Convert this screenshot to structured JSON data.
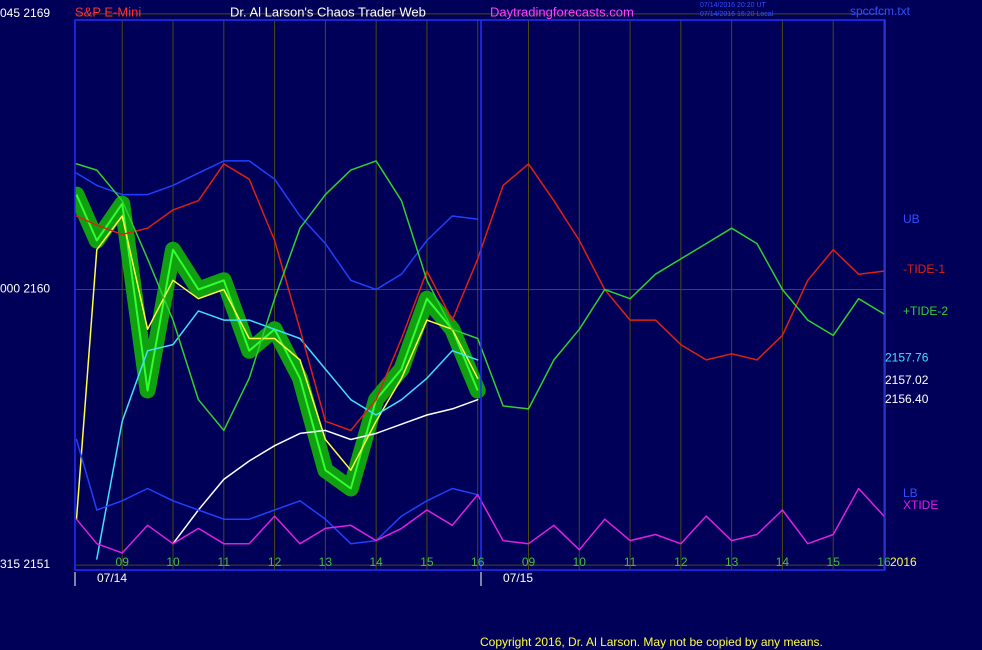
{
  "header": {
    "symbol": "S&P E-Mini",
    "site_title": "Dr. Al Larson's Chaos Trader Web",
    "url": "Daytradingforecasts.com",
    "time_ut": "07/14/2016 20:20 UT",
    "time_local": "07/14/2016 16:20 Local",
    "file": "spccfcm.txt"
  },
  "footer": {
    "copyright": "Copyright 2016, Dr. Al Larson. May not be copied by any means.",
    "year": "2016"
  },
  "chart_data": {
    "type": "line",
    "dates": [
      "07/14",
      "07/15"
    ],
    "x": [
      -0.9,
      -0.5,
      0,
      0.5,
      1,
      1.5,
      2,
      2.5,
      3,
      3.5,
      4,
      4.5,
      5,
      5.5,
      6,
      6.5,
      7,
      7.5,
      8,
      8.5,
      9,
      9.5,
      10,
      10.5,
      11,
      11.5,
      12,
      12.5,
      13,
      13.5,
      14,
      14.5,
      15
    ],
    "xlim": [
      -0.93,
      15.02
    ],
    "xticks": [
      {
        "value": 0,
        "label": "09"
      },
      {
        "value": 1,
        "label": "10"
      },
      {
        "value": 2,
        "label": "11"
      },
      {
        "value": 3,
        "label": "12"
      },
      {
        "value": 4,
        "label": "13"
      },
      {
        "value": 5,
        "label": "14"
      },
      {
        "value": 6,
        "label": "15"
      },
      {
        "value": 7,
        "label": "16"
      },
      {
        "value": 8,
        "label": "09"
      },
      {
        "value": 9,
        "label": "10"
      },
      {
        "value": 10,
        "label": "11"
      },
      {
        "value": 11,
        "label": "12"
      },
      {
        "value": 12,
        "label": "13"
      },
      {
        "value": 13,
        "label": "14"
      },
      {
        "value": 14,
        "label": "15"
      },
      {
        "value": 15,
        "label": "16"
      }
    ],
    "ylim": [
      2150.84,
      2168.8
    ],
    "yticks": [
      {
        "value": 2169,
        "label": "045  2169"
      },
      {
        "value": 2160,
        "label": "000  2160"
      },
      {
        "value": 2151,
        "label": "315  2151"
      }
    ],
    "grid": true,
    "last_values": [
      {
        "value": 2157.76,
        "label": "2157.76",
        "color": "#40e0ff"
      },
      {
        "value": 2157.02,
        "label": "2157.02",
        "color": "#ffffff"
      },
      {
        "value": 2156.4,
        "label": "2156.40",
        "color": "#ffffff"
      }
    ],
    "series": [
      {
        "color": "#10a010",
        "values": [
          2163.1,
          2161.6,
          2162.8,
          2156.7,
          2161.3,
          2160.0,
          2160.3,
          2158.0,
          2158.7,
          2157.1,
          2154.1,
          2153.5,
          2156.4,
          2157.4,
          2159.7,
          2158.7,
          2156.7,
          null,
          null,
          null,
          null,
          null,
          null,
          null,
          null,
          null,
          null,
          null,
          null,
          null,
          null,
          null,
          null
        ]
      },
      {
        "color": "#ffff40",
        "values": [
          2152.5,
          2161.3,
          2162.4,
          2158.7,
          2160.3,
          2159.7,
          2160.0,
          2158.4,
          2158.4,
          2157.7,
          2155.1,
          2154.1,
          2155.7,
          2157.1,
          2159.0,
          2158.7,
          2157.1,
          null,
          null,
          null,
          null,
          null,
          null,
          null,
          null,
          null,
          null,
          null,
          null,
          null,
          null,
          null,
          null
        ]
      },
      {
        "color": "#40e0ff",
        "values": [
          null,
          2151.2,
          2155.7,
          2158.0,
          2158.2,
          2159.3,
          2159.0,
          2159.0,
          2158.7,
          2158.4,
          2157.4,
          2156.4,
          2155.9,
          2156.4,
          2157.1,
          2158.0,
          2157.7,
          null,
          null,
          null,
          null,
          null,
          null,
          null,
          null,
          null,
          null,
          null,
          null,
          null,
          null,
          null,
          null
        ]
      },
      {
        "color": "#ffffff",
        "values": [
          null,
          null,
          null,
          null,
          2151.7,
          2152.8,
          2153.8,
          2154.4,
          2154.9,
          2155.3,
          2155.4,
          2155.1,
          2155.3,
          2155.6,
          2155.9,
          2156.1,
          2156.4,
          null,
          null,
          null,
          null,
          null,
          null,
          null,
          null,
          null,
          null,
          null,
          null,
          null,
          null,
          null,
          null
        ]
      },
      {
        "name": "UB",
        "color": "#2040ff",
        "values": [
          2163.8,
          2163.4,
          2163.1,
          2163.1,
          2163.4,
          2163.8,
          2164.2,
          2164.2,
          2163.6,
          2162.4,
          2161.5,
          2160.3,
          2160.0,
          2160.5,
          2161.6,
          2162.4,
          2162.3,
          null,
          null,
          null,
          null,
          null,
          null,
          null,
          null,
          null,
          null,
          null,
          null,
          null,
          null,
          null,
          null
        ]
      },
      {
        "name": "-TIDE-1",
        "color": "#e02010",
        "values": [
          2162.4,
          2162.1,
          2161.8,
          2162.0,
          2162.6,
          2162.9,
          2164.1,
          2163.6,
          2161.6,
          2158.7,
          2155.7,
          2155.4,
          2156.4,
          2158.4,
          2160.6,
          2159.0,
          2161.0,
          2163.4,
          2164.1,
          2162.9,
          2161.6,
          2160.0,
          2159.0,
          2159.0,
          2158.2,
          2157.7,
          2157.9,
          2157.7,
          2158.5,
          2160.3,
          2161.3,
          2160.5,
          2160.6
        ]
      },
      {
        "name": "+TIDE-2",
        "color": "#30d030",
        "values": [
          2164.1,
          2163.9,
          2162.9,
          2161.0,
          2159.0,
          2156.4,
          2155.4,
          2157.1,
          2159.7,
          2162.0,
          2163.1,
          2163.9,
          2164.2,
          2162.9,
          2160.3,
          2158.7,
          2158.4,
          2156.2,
          2156.1,
          2157.7,
          2158.7,
          2160.0,
          2159.7,
          2160.5,
          2161.0,
          2161.5,
          2162.0,
          2161.5,
          2160.0,
          2159.0,
          2158.5,
          2159.7,
          2159.2
        ]
      },
      {
        "name": "LB",
        "color": "#2040ff",
        "values": [
          2155.1,
          2152.8,
          2153.1,
          2153.5,
          2153.1,
          2152.8,
          2152.5,
          2152.5,
          2152.8,
          2153.1,
          2152.5,
          2151.7,
          2151.8,
          2152.6,
          2153.1,
          2153.5,
          2153.3,
          null,
          null,
          null,
          null,
          null,
          null,
          null,
          null,
          null,
          null,
          null,
          null,
          null,
          null,
          null,
          null
        ]
      },
      {
        "name": "XTIDE",
        "color": "#e020e0",
        "values": [
          2152.5,
          2151.7,
          2151.4,
          2152.3,
          2151.7,
          2152.2,
          2151.7,
          2151.7,
          2152.6,
          2151.7,
          2152.2,
          2152.3,
          2151.8,
          2152.2,
          2152.8,
          2152.3,
          2153.3,
          2151.8,
          2151.7,
          2152.3,
          2151.5,
          2152.5,
          2151.8,
          2152.0,
          2151.7,
          2152.6,
          2151.8,
          2152.0,
          2152.8,
          2151.7,
          2152.0,
          2153.5,
          2152.6
        ]
      }
    ]
  }
}
